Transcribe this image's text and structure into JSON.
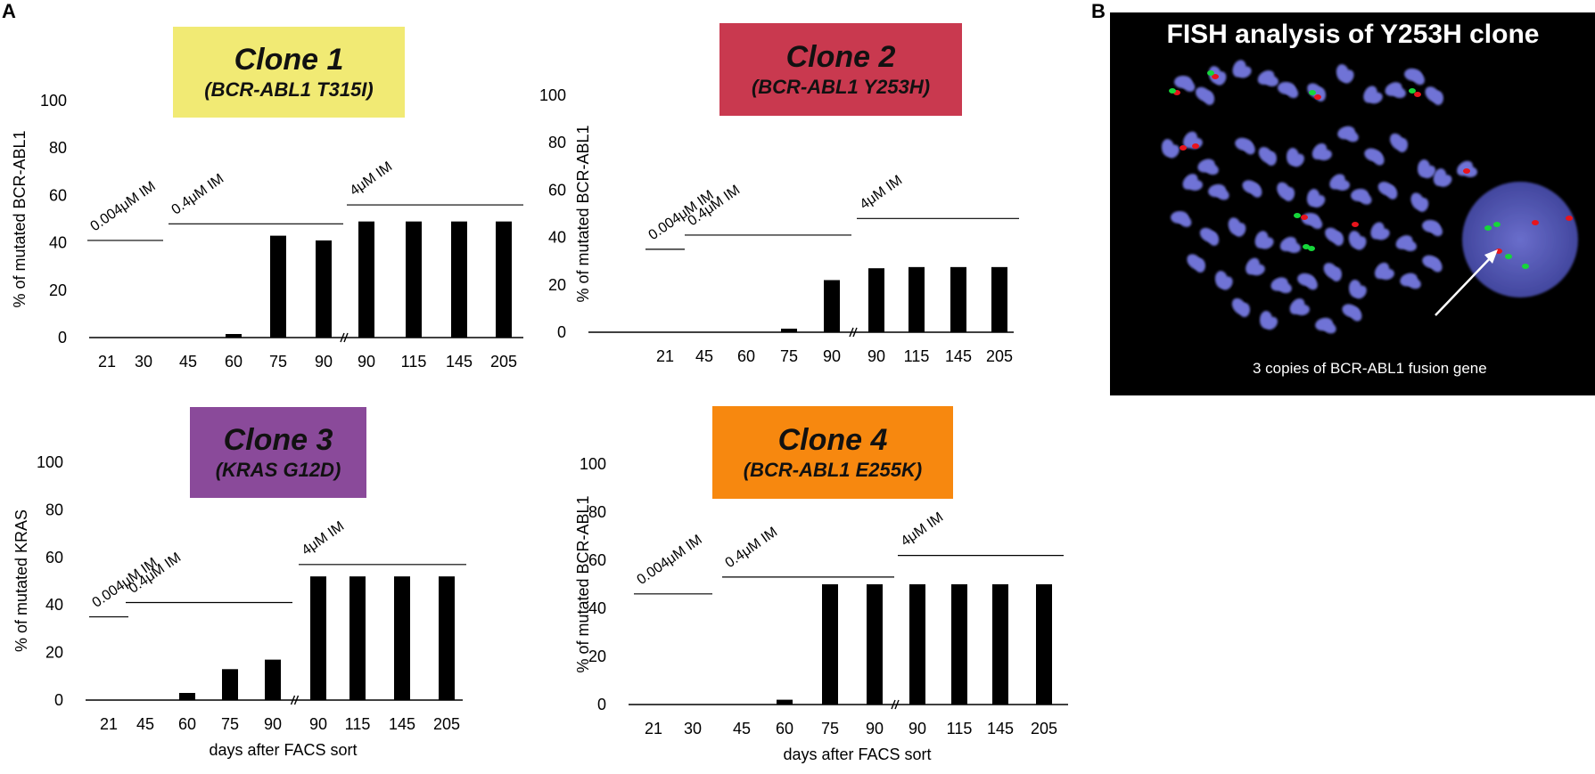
{
  "panel_a": "A",
  "panel_b": "B",
  "chart_data": [
    {
      "type": "bar",
      "title": "Clone 1",
      "subtitle": "(BCR-ABL1 T315I)",
      "title_color": "#f1ea74",
      "ylabel": "% of mutated BCR-ABL1",
      "xlabel": "",
      "ylim": [
        0,
        100
      ],
      "yticks": [
        0,
        20,
        40,
        60,
        80,
        100
      ],
      "categories": [
        "21",
        "30",
        "45",
        "60",
        "75",
        "90",
        "90",
        "115",
        "145",
        "205"
      ],
      "values": [
        0,
        0,
        0,
        1.5,
        43,
        41,
        49,
        49,
        49,
        49
      ],
      "axis_break_after_index": 5,
      "treatments": [
        {
          "label": "0.004μM IM",
          "from": 0,
          "to": 1,
          "level": 41
        },
        {
          "label": "0.4μM IM",
          "from": 2,
          "to": 5,
          "level": 48
        },
        {
          "label": "4μM IM",
          "from": 6,
          "to": 9,
          "level": 56
        }
      ]
    },
    {
      "type": "bar",
      "title": "Clone 2",
      "subtitle": "(BCR-ABL1 Y253H)",
      "title_color": "#c9394f",
      "ylabel": "% of mutated BCR-ABL1",
      "xlabel": "",
      "ylim": [
        0,
        100
      ],
      "yticks": [
        0,
        20,
        40,
        60,
        80,
        100
      ],
      "categories": [
        "21",
        "45",
        "60",
        "75",
        "90",
        "90",
        "115",
        "145",
        "205"
      ],
      "values": [
        0,
        0,
        0,
        1.5,
        22,
        27,
        27.5,
        27.5,
        27.5
      ],
      "axis_break_after_index": 4,
      "treatments": [
        {
          "label": "0.004μM IM",
          "from": 0,
          "to": 0,
          "level": 35
        },
        {
          "label": "0.4μM IM",
          "from": 1,
          "to": 4,
          "level": 41
        },
        {
          "label": "4μM IM",
          "from": 5,
          "to": 8,
          "level": 48
        }
      ]
    },
    {
      "type": "bar",
      "title": "Clone 3",
      "subtitle": "(KRAS G12D)",
      "title_color": "#8a4a9a",
      "ylabel": "% of mutated KRAS",
      "xlabel": "days after FACS sort",
      "ylim": [
        0,
        100
      ],
      "yticks": [
        0,
        20,
        40,
        60,
        80,
        100
      ],
      "categories": [
        "21",
        "45",
        "60",
        "75",
        "90",
        "90",
        "115",
        "145",
        "205"
      ],
      "values": [
        0,
        0,
        3,
        13,
        17,
        52,
        52,
        52,
        52
      ],
      "axis_break_after_index": 4,
      "treatments": [
        {
          "label": "0.004μM IM",
          "from": 0,
          "to": 0,
          "level": 35
        },
        {
          "label": "0.4μM IM",
          "from": 1,
          "to": 4,
          "level": 41
        },
        {
          "label": "4μM IM",
          "from": 5,
          "to": 8,
          "level": 57
        }
      ]
    },
    {
      "type": "bar",
      "title": "Clone 4",
      "subtitle": "(BCR-ABL1 E255K)",
      "title_color": "#f7880f",
      "ylabel": "% of mutated BCR-ABL1",
      "xlabel": "days after FACS sort",
      "ylim": [
        0,
        100
      ],
      "yticks": [
        0,
        20,
        40,
        60,
        80,
        100
      ],
      "categories": [
        "21",
        "30",
        "45",
        "60",
        "75",
        "90",
        "90",
        "115",
        "145",
        "205"
      ],
      "values": [
        0,
        0,
        0,
        2,
        50,
        50,
        50,
        50,
        50,
        50
      ],
      "axis_break_after_index": 5,
      "treatments": [
        {
          "label": "0.004μM IM",
          "from": 0,
          "to": 1,
          "level": 46
        },
        {
          "label": "0.4μM IM",
          "from": 2,
          "to": 5,
          "level": 53
        },
        {
          "label": "4μM IM",
          "from": 6,
          "to": 9,
          "level": 62
        }
      ]
    }
  ],
  "fish": {
    "title": "FISH analysis of Y253H clone",
    "caption": "3 copies of BCR-ABL1 fusion  gene",
    "chromosome_color": "#6f73d6",
    "red_signal_color": "#e8141c",
    "green_signal_color": "#16d63a"
  }
}
